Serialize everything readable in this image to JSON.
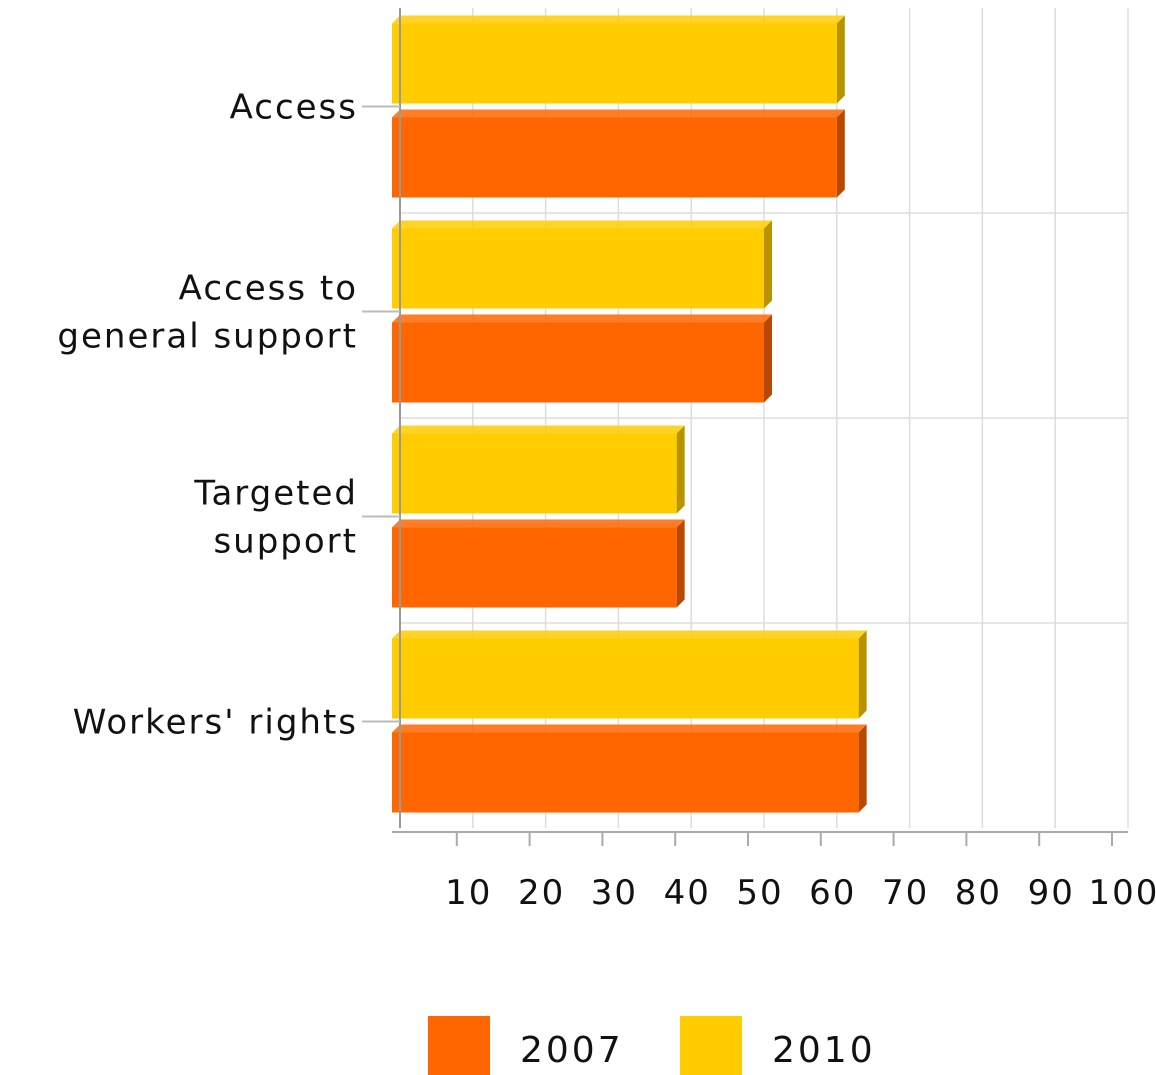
{
  "chart_data": {
    "type": "bar",
    "orientation": "horizontal",
    "categories": [
      "Access",
      "Access to general support",
      "Targeted support",
      "Workers' rights"
    ],
    "category_lines": [
      [
        "Access"
      ],
      [
        "Access to",
        "general support"
      ],
      [
        "Targeted",
        "support"
      ],
      [
        "Workers' rights"
      ]
    ],
    "series": [
      {
        "name": "2007",
        "color": "#ff6600",
        "values": [
          60,
          50,
          38,
          63
        ]
      },
      {
        "name": "2010",
        "color": "#ffcc00",
        "values": [
          60,
          50,
          38,
          63
        ]
      }
    ],
    "xlim": [
      0,
      100
    ],
    "x_ticks": [
      10,
      20,
      30,
      40,
      50,
      60,
      70,
      80,
      90,
      100
    ],
    "grid": true,
    "legend_position": "bottom",
    "title": "",
    "xlabel": "",
    "ylabel": ""
  }
}
